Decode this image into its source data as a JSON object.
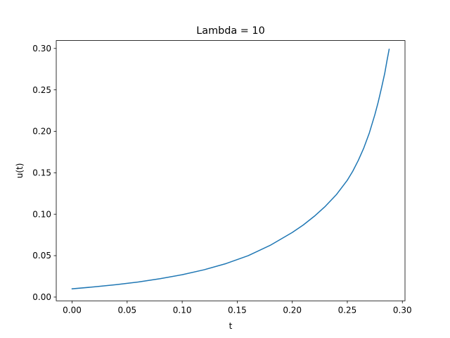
{
  "chart_data": {
    "type": "line",
    "title": "Lambda = 10",
    "xlabel": "t",
    "ylabel": "u(t)",
    "xlim": [
      -0.0144,
      0.3024
    ],
    "ylim": [
      -0.0045,
      0.3095
    ],
    "xticks": [
      0.0,
      0.05,
      0.1,
      0.15,
      0.2,
      0.25,
      0.3
    ],
    "xtick_labels": [
      "0.00",
      "0.05",
      "0.10",
      "0.15",
      "0.20",
      "0.25",
      "0.30"
    ],
    "yticks": [
      0.0,
      0.05,
      0.1,
      0.15,
      0.2,
      0.25,
      0.3
    ],
    "ytick_labels": [
      "0.00",
      "0.05",
      "0.10",
      "0.15",
      "0.20",
      "0.25",
      "0.30"
    ],
    "grid": false,
    "legend": "none",
    "series": [
      {
        "color": "#1f77b4",
        "x": [
          0.0,
          0.02,
          0.04,
          0.06,
          0.08,
          0.1,
          0.12,
          0.14,
          0.16,
          0.18,
          0.2,
          0.21,
          0.22,
          0.23,
          0.24,
          0.25,
          0.255,
          0.26,
          0.265,
          0.27,
          0.275,
          0.278,
          0.281,
          0.284,
          0.286,
          0.288
        ],
        "y": [
          0.01,
          0.0123,
          0.015,
          0.0182,
          0.0222,
          0.027,
          0.033,
          0.0405,
          0.05,
          0.0625,
          0.078,
          0.087,
          0.0975,
          0.1095,
          0.1235,
          0.141,
          0.152,
          0.165,
          0.18,
          0.198,
          0.22,
          0.235,
          0.252,
          0.27,
          0.285,
          0.299
        ]
      }
    ]
  }
}
